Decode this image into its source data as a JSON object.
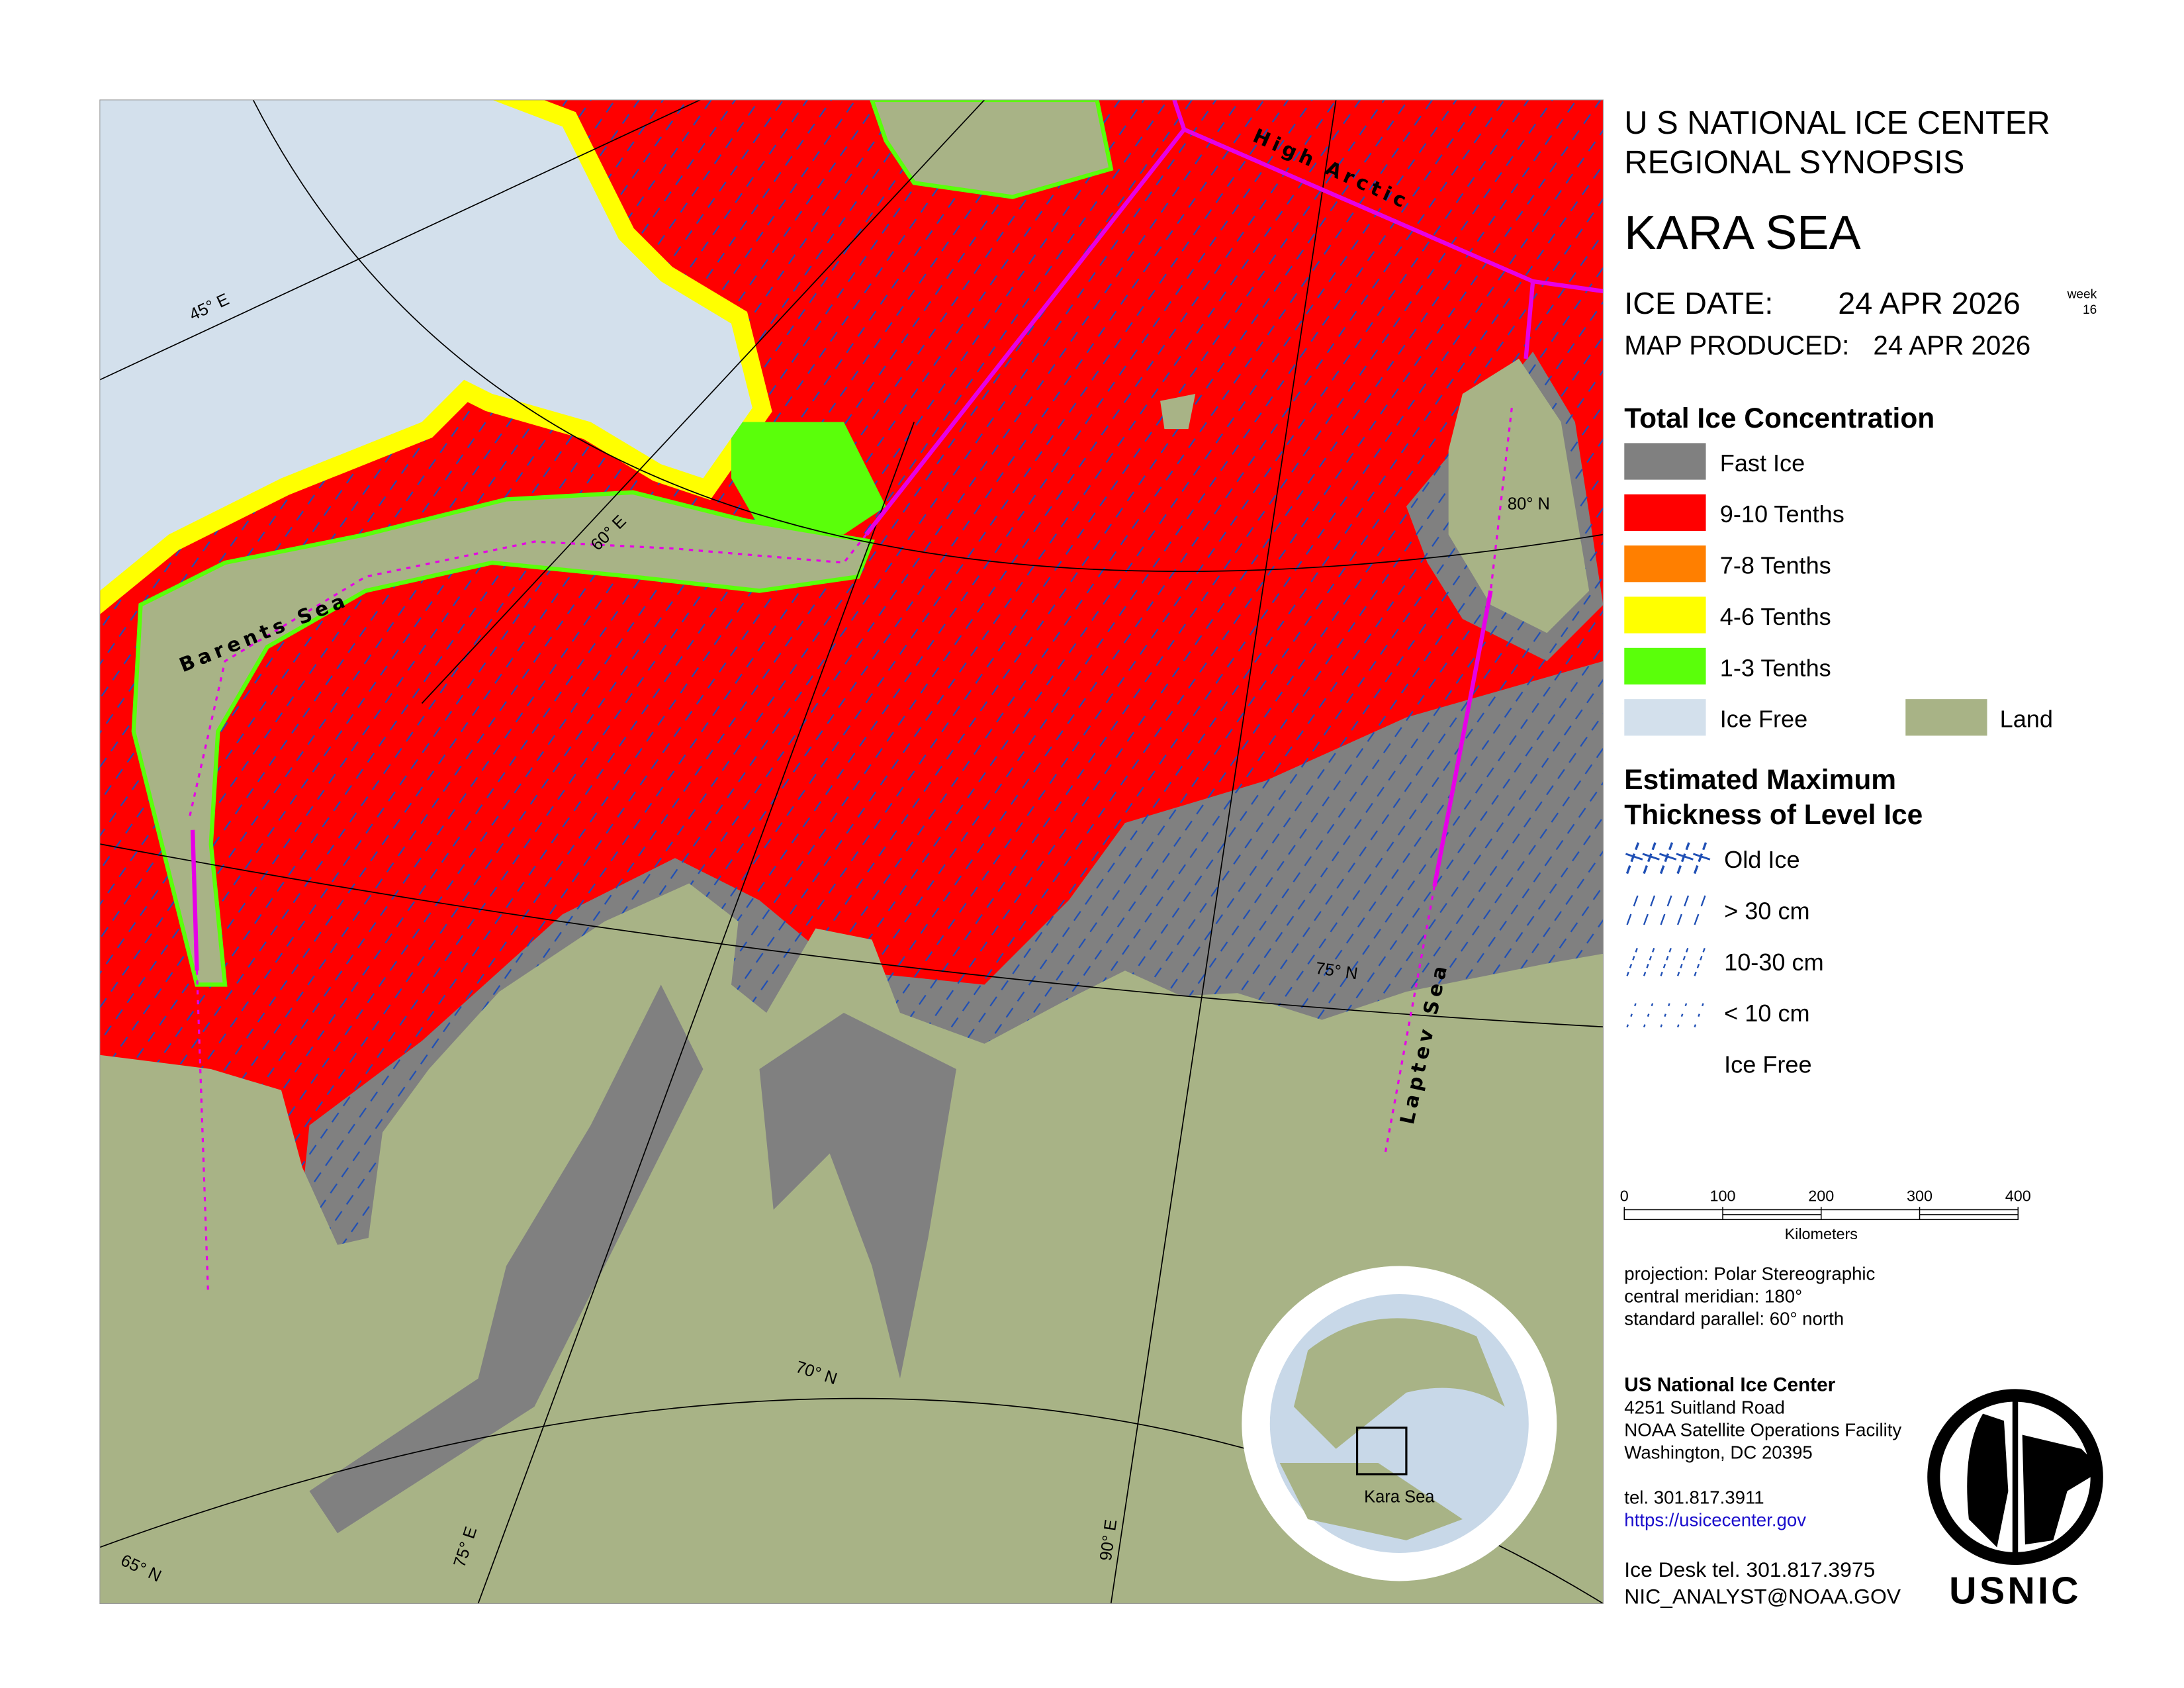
{
  "header": {
    "line1": "U S NATIONAL ICE CENTER",
    "line2": "REGIONAL SYNOPSIS",
    "region": "KARA SEA",
    "ice_date_label": "ICE DATE:",
    "ice_date": "24 APR 2026",
    "week_label": "week",
    "week": "16",
    "map_produced_label": "MAP PRODUCED:",
    "map_produced": "24 APR 2026"
  },
  "concentration_legend": {
    "title": "Total Ice Concentration",
    "items": [
      {
        "label": "Fast Ice",
        "color": "#808080"
      },
      {
        "label": "9-10 Tenths",
        "color": "#ff0000"
      },
      {
        "label": "7-8 Tenths",
        "color": "#ff7f00"
      },
      {
        "label": "4-6 Tenths",
        "color": "#ffff00"
      },
      {
        "label": "1-3 Tenths",
        "color": "#5aff0a"
      },
      {
        "label": "Ice Free",
        "color": "#d3e0ec"
      },
      {
        "label": "Land",
        "color": "#a8b386"
      }
    ]
  },
  "thickness_legend": {
    "title_line1": "Estimated Maximum",
    "title_line2": "Thickness of Level Ice",
    "items": [
      "Old Ice",
      "> 30 cm",
      "10-30 cm",
      "< 10 cm",
      "Ice Free"
    ]
  },
  "scale_bar": {
    "ticks": [
      "0",
      "100",
      "200",
      "300",
      "400"
    ],
    "unit": "Kilometers"
  },
  "projection": [
    "projection: Polar Stereographic",
    "central meridian: 180°",
    "standard parallel:  60° north"
  ],
  "contact": {
    "name": "US National Ice Center",
    "address": [
      "4251 Suitland Road",
      "NOAA Satellite Operations Facility",
      "Washington, DC  20395"
    ],
    "tel": "tel. 301.817.3911",
    "url": "https://usicecenter.gov",
    "ice_desk": "Ice Desk tel. 301.817.3975",
    "email": "NIC_ANALYST@NOAA.GOV"
  },
  "map_labels": {
    "seas": [
      "Barents Sea",
      "High Arctic",
      "Laptev Sea"
    ],
    "graticule": [
      "45° E",
      "60° E",
      "75° E",
      "90° E",
      "65° N",
      "70° N",
      "75° N",
      "80° N"
    ]
  },
  "inset": {
    "label": "Kara Sea"
  },
  "logo": "USNIC"
}
